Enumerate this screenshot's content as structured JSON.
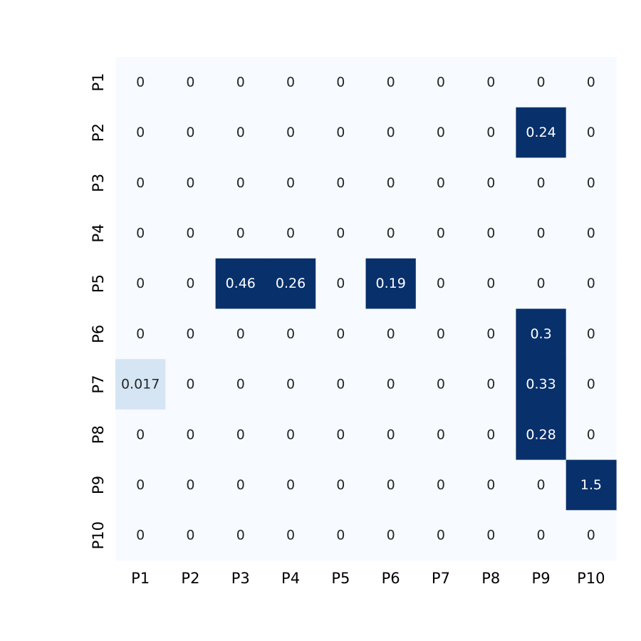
{
  "chart_data": {
    "type": "heatmap",
    "title": "",
    "xlabel": "",
    "ylabel": "",
    "x_labels": [
      "P1",
      "P2",
      "P3",
      "P4",
      "P5",
      "P6",
      "P7",
      "P8",
      "P9",
      "P10"
    ],
    "y_labels": [
      "P1",
      "P2",
      "P3",
      "P4",
      "P5",
      "P6",
      "P7",
      "P8",
      "P9",
      "P10"
    ],
    "values": [
      [
        0,
        0,
        0,
        0,
        0,
        0,
        0,
        0,
        0,
        0
      ],
      [
        0,
        0,
        0,
        0,
        0,
        0,
        0,
        0,
        0.24,
        0
      ],
      [
        0,
        0,
        0,
        0,
        0,
        0,
        0,
        0,
        0,
        0
      ],
      [
        0,
        0,
        0,
        0,
        0,
        0,
        0,
        0,
        0,
        0
      ],
      [
        0,
        0,
        0.46,
        0.26,
        0,
        0.19,
        0,
        0,
        0,
        0
      ],
      [
        0,
        0,
        0,
        0,
        0,
        0,
        0,
        0,
        0.3,
        0
      ],
      [
        0.017,
        0,
        0,
        0,
        0,
        0,
        0,
        0,
        0.33,
        0
      ],
      [
        0,
        0,
        0,
        0,
        0,
        0,
        0,
        0,
        0.28,
        0
      ],
      [
        0,
        0,
        0,
        0,
        0,
        0,
        0,
        0,
        0,
        1.5
      ],
      [
        0,
        0,
        0,
        0,
        0,
        0,
        0,
        0,
        0,
        0
      ]
    ],
    "cell_text": [
      [
        "0",
        "0",
        "0",
        "0",
        "0",
        "0",
        "0",
        "0",
        "0",
        "0"
      ],
      [
        "0",
        "0",
        "0",
        "0",
        "0",
        "0",
        "0",
        "0",
        "0.24",
        "0"
      ],
      [
        "0",
        "0",
        "0",
        "0",
        "0",
        "0",
        "0",
        "0",
        "0",
        "0"
      ],
      [
        "0",
        "0",
        "0",
        "0",
        "0",
        "0",
        "0",
        "0",
        "0",
        "0"
      ],
      [
        "0",
        "0",
        "0.46",
        "0.26",
        "0",
        "0.19",
        "0",
        "0",
        "0",
        "0"
      ],
      [
        "0",
        "0",
        "0",
        "0",
        "0",
        "0",
        "0",
        "0",
        "0.3",
        "0"
      ],
      [
        "0.017",
        "0",
        "0",
        "0",
        "0",
        "0",
        "0",
        "0",
        "0.33",
        "0"
      ],
      [
        "0",
        "0",
        "0",
        "0",
        "0",
        "0",
        "0",
        "0",
        "0.28",
        "0"
      ],
      [
        "0",
        "0",
        "0",
        "0",
        "0",
        "0",
        "0",
        "0",
        "0",
        "1.5"
      ],
      [
        "0",
        "0",
        "0",
        "0",
        "0",
        "0",
        "0",
        "0",
        "0",
        "0"
      ]
    ],
    "colormap": "Blues",
    "color_range": [
      0,
      0.1
    ],
    "colorbar": false,
    "colors": {
      "low": "#f7fbff",
      "high": "#08306b",
      "text_dark": "#262626",
      "text_light": "#ffffff"
    }
  }
}
